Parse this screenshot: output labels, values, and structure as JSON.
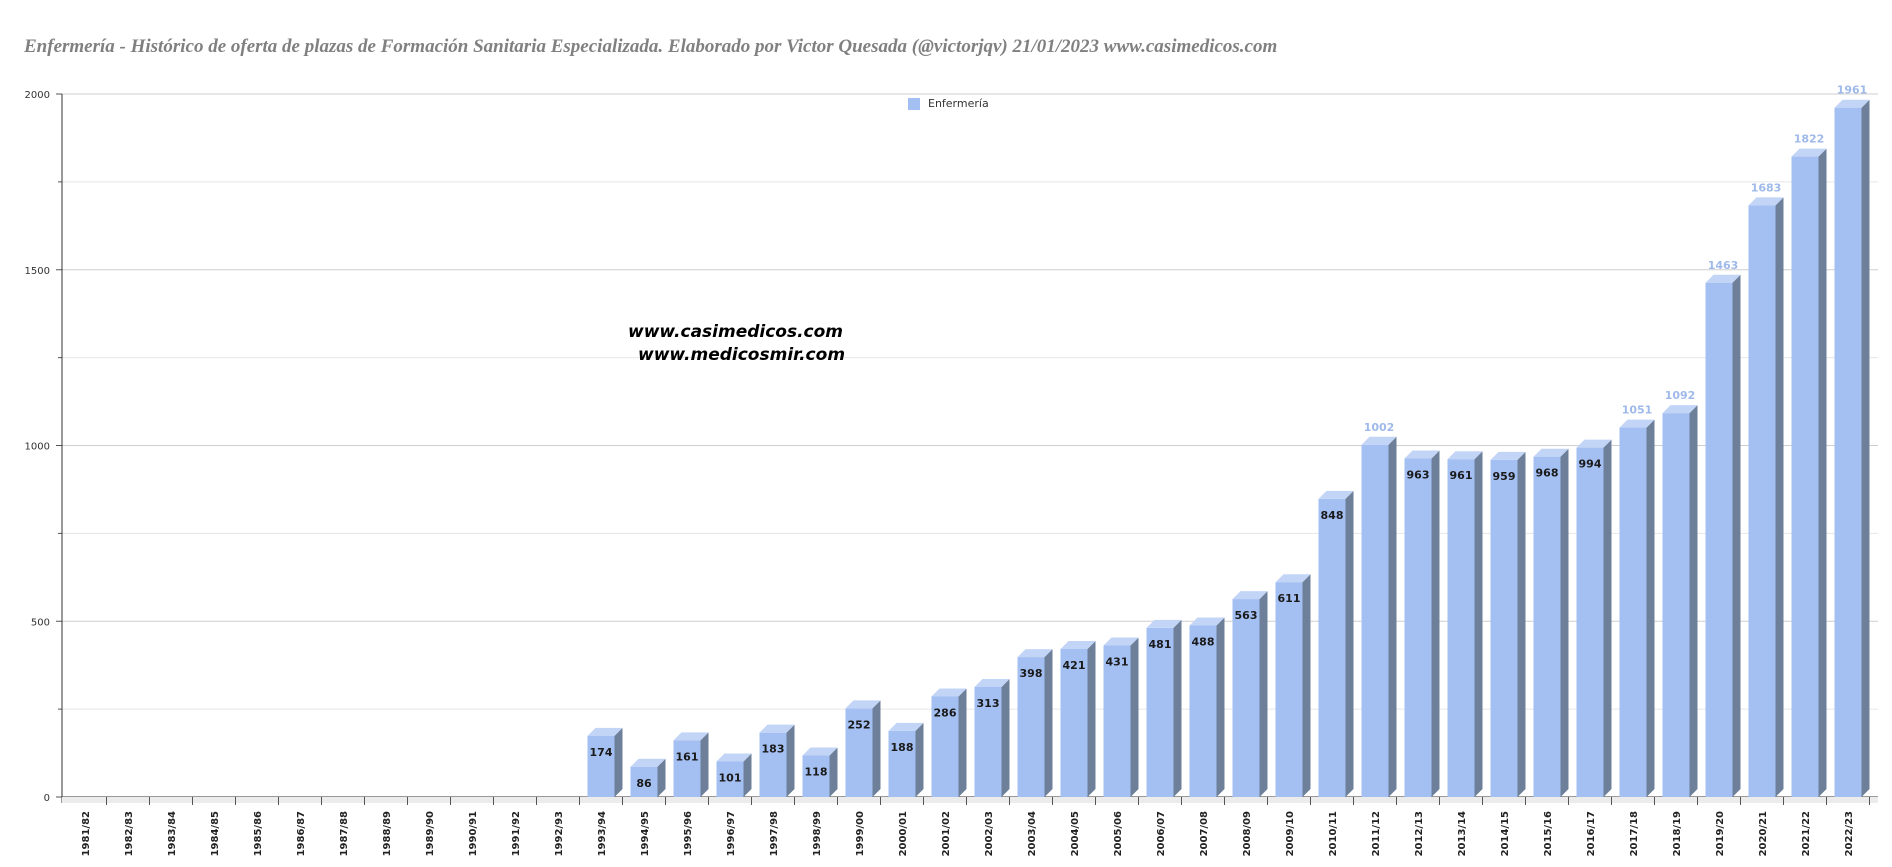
{
  "title": "Enfermería - Histórico de oferta de plazas de Formación Sanitaria Especializada. Elaborado por Victor Quesada (@victorjqv)  21/01/2023 www.casimedicos.com",
  "watermarks": [
    "www.casimedicos.com",
    "www.medicosmir.com"
  ],
  "colors": {
    "bar_front": "#a4bff2",
    "bar_top": "#c3d5f7",
    "bar_side": "#6d7f99",
    "label_dark": "#1a1a1a",
    "label_light": "#9fbaea"
  },
  "chart_data": {
    "type": "bar",
    "categories": [
      "1981/82",
      "1982/83",
      "1983/84",
      "1984/85",
      "1985/86",
      "1986/87",
      "1987/88",
      "1988/89",
      "1989/90",
      "1990/91",
      "1991/92",
      "1992/93",
      "1993/94",
      "1994/95",
      "1995/96",
      "1996/97",
      "1997/98",
      "1998/99",
      "1999/00",
      "2000/01",
      "2001/02",
      "2002/03",
      "2003/04",
      "2004/05",
      "2005/06",
      "2006/07",
      "2007/08",
      "2008/09",
      "2009/10",
      "2010/11",
      "2011/12",
      "2012/13",
      "2013/14",
      "2014/15",
      "2015/16",
      "2016/17",
      "2017/18",
      "2018/19",
      "2019/20",
      "2020/21",
      "2021/22",
      "2022/23"
    ],
    "series": [
      {
        "name": "Enfermería",
        "values": [
          0,
          0,
          0,
          0,
          0,
          0,
          0,
          0,
          0,
          0,
          0,
          0,
          174,
          86,
          161,
          101,
          183,
          118,
          252,
          188,
          286,
          313,
          398,
          421,
          431,
          481,
          488,
          563,
          611,
          848,
          1002,
          963,
          961,
          959,
          968,
          994,
          1051,
          1092,
          1463,
          1683,
          1822,
          1961
        ]
      }
    ],
    "ylim": [
      0,
      2000
    ],
    "yticks": [
      0,
      500,
      1000,
      1500,
      2000
    ],
    "legend": "top-center",
    "grid": true
  }
}
